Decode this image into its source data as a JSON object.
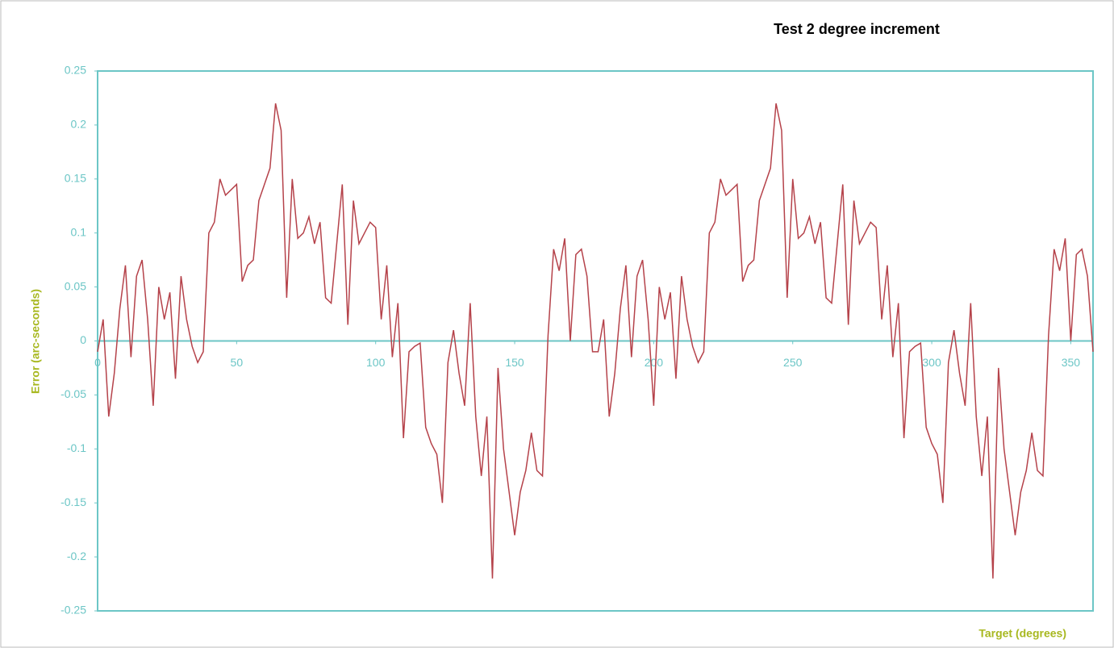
{
  "chart_data": {
    "type": "line",
    "title": "Test 2 degree increment",
    "x_label": "Target (degrees)",
    "y_label": "Error (arc-seconds)",
    "x": [
      0,
      2,
      4,
      6,
      8,
      10,
      12,
      14,
      16,
      18,
      20,
      22,
      24,
      26,
      28,
      30,
      32,
      34,
      36,
      38,
      40,
      42,
      44,
      46,
      48,
      50,
      52,
      54,
      56,
      58,
      60,
      62,
      64,
      66,
      68,
      70,
      72,
      74,
      76,
      78,
      80,
      82,
      84,
      86,
      88,
      90,
      92,
      94,
      96,
      98,
      100,
      102,
      104,
      106,
      108,
      110,
      112,
      114,
      116,
      118,
      120,
      122,
      124,
      126,
      128,
      130,
      132,
      134,
      136,
      138,
      140,
      142,
      144,
      146,
      148,
      150,
      152,
      154,
      156,
      158,
      160,
      162,
      164,
      166,
      168,
      170,
      172,
      174,
      176,
      178,
      180,
      182,
      184,
      186,
      188,
      190,
      192,
      194,
      196,
      198,
      200,
      202,
      204,
      206,
      208,
      210,
      212,
      214,
      216,
      218,
      220,
      222,
      224,
      226,
      228,
      230,
      232,
      234,
      236,
      238,
      240,
      242,
      244,
      246,
      248,
      250,
      252,
      254,
      256,
      258,
      260,
      262,
      264,
      266,
      268,
      270,
      272,
      274,
      276,
      278,
      280,
      282,
      284,
      286,
      288,
      290,
      292,
      294,
      296,
      298,
      300,
      302,
      304,
      306,
      308,
      310,
      312,
      314,
      316,
      318,
      320,
      322,
      324,
      326,
      328,
      330,
      332,
      334,
      336,
      338,
      340,
      342,
      344,
      346,
      348,
      350,
      352,
      354,
      356,
      358
    ],
    "series": [
      {
        "name": "Error",
        "color": "#b5424a",
        "values": [
          -0.01,
          0.02,
          -0.07,
          -0.03,
          0.03,
          0.07,
          -0.015,
          0.06,
          0.075,
          0.02,
          -0.06,
          0.05,
          0.02,
          0.045,
          -0.035,
          0.06,
          0.02,
          -0.005,
          -0.02,
          -0.01,
          0.1,
          0.11,
          0.15,
          0.135,
          0.14,
          0.145,
          0.055,
          0.07,
          0.075,
          0.13,
          0.145,
          0.16,
          0.22,
          0.195,
          0.04,
          0.15,
          0.095,
          0.1,
          0.115,
          0.09,
          0.11,
          0.04,
          0.035,
          0.09,
          0.145,
          0.015,
          0.13,
          0.09,
          0.1,
          0.11,
          0.105,
          0.02,
          0.07,
          -0.015,
          0.035,
          -0.09,
          -0.01,
          -0.005,
          -0.002,
          -0.08,
          -0.095,
          -0.105,
          -0.15,
          -0.02,
          0.01,
          -0.03,
          -0.06,
          0.035,
          -0.07,
          -0.125,
          -0.07,
          -0.22,
          -0.025,
          -0.1,
          -0.14,
          -0.18,
          -0.14,
          -0.12,
          -0.085,
          -0.12,
          -0.125,
          0.005,
          0.085,
          0.065,
          0.095,
          0,
          0.08,
          0.085,
          0.06,
          -0.01,
          -0.01,
          0.02,
          -0.07,
          -0.03,
          0.03,
          0.07,
          -0.015,
          0.06,
          0.075,
          0.02,
          -0.06,
          0.05,
          0.02,
          0.045,
          -0.035,
          0.06,
          0.02,
          -0.005,
          -0.02,
          -0.01,
          0.1,
          0.11,
          0.15,
          0.135,
          0.14,
          0.145,
          0.055,
          0.07,
          0.075,
          0.13,
          0.145,
          0.16,
          0.22,
          0.195,
          0.04,
          0.15,
          0.095,
          0.1,
          0.115,
          0.09,
          0.11,
          0.04,
          0.035,
          0.09,
          0.145,
          0.015,
          0.13,
          0.09,
          0.1,
          0.11,
          0.105,
          0.02,
          0.07,
          -0.015,
          0.035,
          -0.09,
          -0.01,
          -0.005,
          -0.002,
          -0.08,
          -0.095,
          -0.105,
          -0.15,
          -0.02,
          0.01,
          -0.03,
          -0.06,
          0.035,
          -0.07,
          -0.125,
          -0.07,
          -0.22,
          -0.025,
          -0.1,
          -0.14,
          -0.18,
          -0.14,
          -0.12,
          -0.085,
          -0.12,
          -0.125,
          0.005,
          0.085,
          0.065,
          0.095,
          0,
          0.08,
          0.085,
          0.06,
          -0.01
        ]
      }
    ],
    "xlim": [
      0,
      358
    ],
    "ylim": [
      -0.25,
      0.25
    ],
    "xticks": [
      0,
      50,
      100,
      150,
      200,
      250,
      300,
      350
    ],
    "yticks": [
      -0.25,
      -0.2,
      -0.15,
      -0.1,
      -0.05,
      0,
      0.05,
      0.1,
      0.15,
      0.2,
      0.25
    ]
  }
}
